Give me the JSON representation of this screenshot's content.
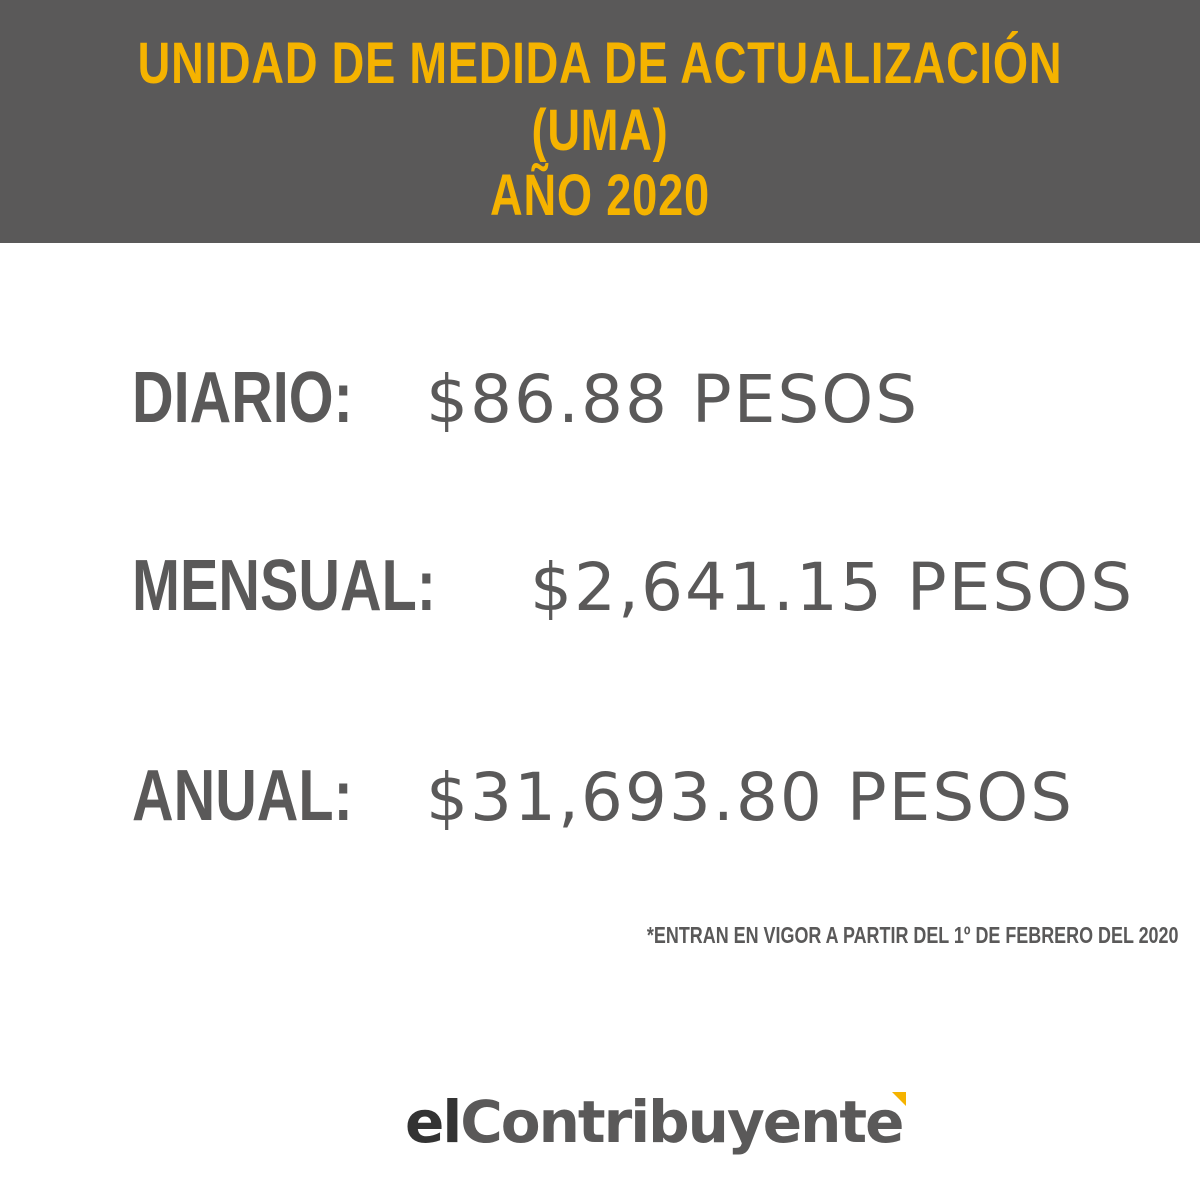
{
  "header": {
    "title_line1": "UNIDAD DE MEDIDA DE ACTUALIZACIÓN (UMA)",
    "title_line2": "AÑO 2020",
    "background_color": "#5a5959",
    "text_color": "#f5b300"
  },
  "values": [
    {
      "label": "DIARIO:",
      "amount": "$86.88 PESOS"
    },
    {
      "label": "MENSUAL:",
      "amount": "$2,641.15 PESOS"
    },
    {
      "label": "ANUAL:",
      "amount": "$31,693.80 PESOS"
    }
  ],
  "note": "*ENTRAN EN VIGOR A PARTIR DEL 1º DE FEBRERO DEL 2020",
  "logo": {
    "prefix": "el",
    "name": "Contribuyente",
    "accent_color": "#f5b300"
  }
}
